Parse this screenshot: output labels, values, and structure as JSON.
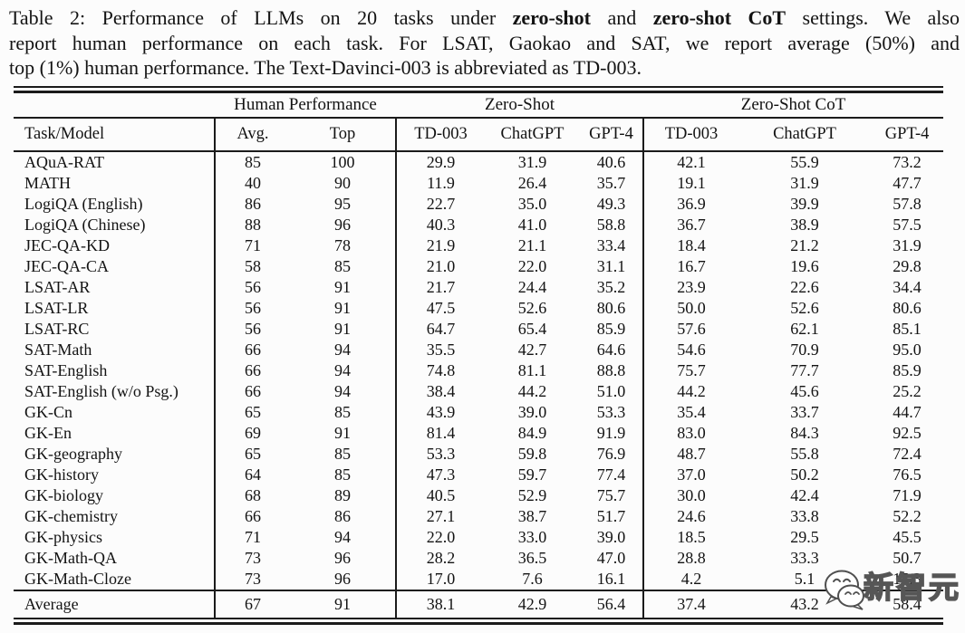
{
  "caption": {
    "line1_pre": "Table 2: Performance of LLMs on 20 tasks under ",
    "line1_bold1": "zero-shot",
    "line1_mid": " and ",
    "line1_bold2": "zero-shot CoT",
    "line1_post": " settings. We also",
    "line2": "report human performance on each task. For LSAT, Gaokao and SAT, we report average (50%) and",
    "line3": "top (1%) human performance. The Text-Davinci-003 is abbreviated as TD-003."
  },
  "table": {
    "group_headers": {
      "human": "Human Performance",
      "zero_shot": "Zero-Shot",
      "zero_shot_cot": "Zero-Shot CoT"
    },
    "column_headers": [
      "Task/Model",
      "Avg.",
      "Top",
      "TD-003",
      "ChatGPT",
      "GPT-4",
      "TD-003",
      "ChatGPT",
      "GPT-4"
    ],
    "rows": [
      {
        "task": "AQuA-RAT",
        "values": [
          "85",
          "100",
          "29.9",
          "31.9",
          "40.6",
          "42.1",
          "55.9",
          "73.2"
        ]
      },
      {
        "task": "MATH",
        "values": [
          "40",
          "90",
          "11.9",
          "26.4",
          "35.7",
          "19.1",
          "31.9",
          "47.7"
        ]
      },
      {
        "task": "LogiQA (English)",
        "values": [
          "86",
          "95",
          "22.7",
          "35.0",
          "49.3",
          "36.9",
          "39.9",
          "57.8"
        ]
      },
      {
        "task": "LogiQA (Chinese)",
        "values": [
          "88",
          "96",
          "40.3",
          "41.0",
          "58.8",
          "36.7",
          "38.9",
          "57.5"
        ]
      },
      {
        "task": "JEC-QA-KD",
        "values": [
          "71",
          "78",
          "21.9",
          "21.1",
          "33.4",
          "18.4",
          "21.2",
          "31.9"
        ]
      },
      {
        "task": "JEC-QA-CA",
        "values": [
          "58",
          "85",
          "21.0",
          "22.0",
          "31.1",
          "16.7",
          "19.6",
          "29.8"
        ]
      },
      {
        "task": "LSAT-AR",
        "values": [
          "56",
          "91",
          "21.7",
          "24.4",
          "35.2",
          "23.9",
          "22.6",
          "34.4"
        ]
      },
      {
        "task": "LSAT-LR",
        "values": [
          "56",
          "91",
          "47.5",
          "52.6",
          "80.6",
          "50.0",
          "52.6",
          "80.6"
        ]
      },
      {
        "task": "LSAT-RC",
        "values": [
          "56",
          "91",
          "64.7",
          "65.4",
          "85.9",
          "57.6",
          "62.1",
          "85.1"
        ]
      },
      {
        "task": "SAT-Math",
        "values": [
          "66",
          "94",
          "35.5",
          "42.7",
          "64.6",
          "54.6",
          "70.9",
          "95.0"
        ]
      },
      {
        "task": "SAT-English",
        "values": [
          "66",
          "94",
          "74.8",
          "81.1",
          "88.8",
          "75.7",
          "77.7",
          "85.9"
        ]
      },
      {
        "task": "SAT-English (w/o Psg.)",
        "values": [
          "66",
          "94",
          "38.4",
          "44.2",
          "51.0",
          "44.2",
          "45.6",
          "25.2"
        ]
      },
      {
        "task": "GK-Cn",
        "values": [
          "65",
          "85",
          "43.9",
          "39.0",
          "53.3",
          "35.4",
          "33.7",
          "44.7"
        ]
      },
      {
        "task": "GK-En",
        "values": [
          "69",
          "91",
          "81.4",
          "84.9",
          "91.9",
          "83.0",
          "84.3",
          "92.5"
        ]
      },
      {
        "task": "GK-geography",
        "values": [
          "65",
          "85",
          "53.3",
          "59.8",
          "76.9",
          "48.7",
          "55.8",
          "72.4"
        ]
      },
      {
        "task": "GK-history",
        "values": [
          "64",
          "85",
          "47.3",
          "59.7",
          "77.4",
          "37.0",
          "50.2",
          "76.5"
        ]
      },
      {
        "task": "GK-biology",
        "values": [
          "68",
          "89",
          "40.5",
          "52.9",
          "75.7",
          "30.0",
          "42.4",
          "71.9"
        ]
      },
      {
        "task": "GK-chemistry",
        "values": [
          "66",
          "86",
          "27.1",
          "38.7",
          "51.7",
          "24.6",
          "33.8",
          "52.2"
        ]
      },
      {
        "task": "GK-physics",
        "values": [
          "71",
          "94",
          "22.0",
          "33.0",
          "39.0",
          "18.5",
          "29.5",
          "45.5"
        ]
      },
      {
        "task": "GK-Math-QA",
        "values": [
          "73",
          "96",
          "28.2",
          "36.5",
          "47.0",
          "28.8",
          "33.3",
          "50.7"
        ]
      },
      {
        "task": "GK-Math-Cloze",
        "values": [
          "73",
          "96",
          "17.0",
          "7.6",
          "16.1",
          "4.2",
          "5.1",
          "15.3"
        ]
      }
    ],
    "average_row": {
      "task": "Average",
      "values": [
        "67",
        "91",
        "38.1",
        "42.9",
        "56.4",
        "37.4",
        "43.2",
        "58.4"
      ]
    }
  },
  "watermark": {
    "text": "新智元"
  },
  "colors": {
    "rule": "#1b1b1b",
    "text": "#131313",
    "background": "#fcfcfc",
    "watermark_fill": "#ffffff",
    "watermark_outline": "#4f4f4f"
  }
}
